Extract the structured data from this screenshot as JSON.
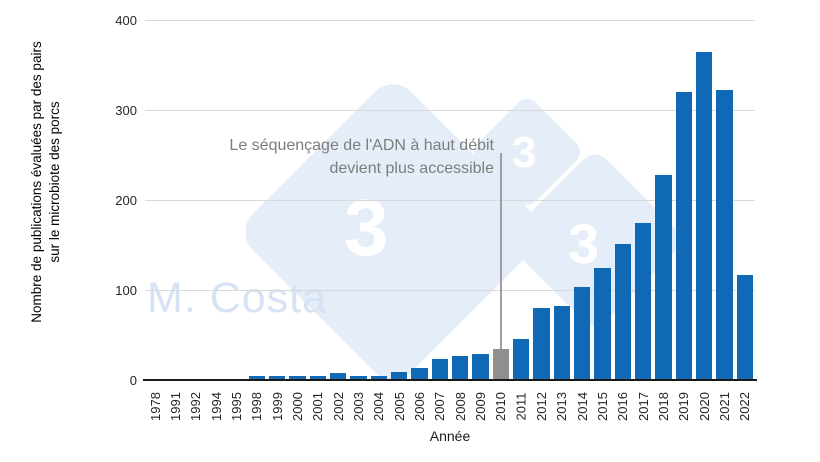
{
  "watermark": {
    "brand": "M. Costa",
    "glyphs": [
      "3",
      "3",
      "3"
    ]
  },
  "chart_data": {
    "type": "bar",
    "title": "",
    "xlabel": "Année",
    "ylabel_lines": [
      "Nombre de publications évaluées par des pairs",
      "sur le microbiote des porcs"
    ],
    "ylim": [
      0,
      400
    ],
    "yticks": [
      0,
      100,
      200,
      300,
      400
    ],
    "grid": true,
    "legend_position": "none",
    "categories": [
      "1978",
      "1991",
      "1992",
      "1994",
      "1995",
      "1998",
      "1999",
      "2000",
      "2001",
      "2002",
      "2003",
      "2004",
      "2005",
      "2006",
      "2007",
      "2008",
      "2009",
      "2010",
      "2011",
      "2012",
      "2013",
      "2014",
      "2015",
      "2016",
      "2017",
      "2018",
      "2019",
      "2020",
      "2021",
      "2022"
    ],
    "values": [
      1,
      1,
      1,
      1,
      1,
      5,
      5,
      5,
      5,
      8,
      4,
      4,
      9,
      13,
      23,
      27,
      29,
      35,
      46,
      80,
      82,
      103,
      124,
      151,
      174,
      228,
      320,
      365,
      322,
      117
    ],
    "highlighted_category": "2010",
    "annotation": {
      "text_lines": [
        "Le séquençage de l'ADN à haut débit",
        "devient plus accessible"
      ],
      "target_category": "2010"
    },
    "colors": {
      "bar": "#1069b4",
      "highlighted_bar": "#8f8f8f",
      "annotation_text": "#7d7d7d",
      "annotation_line": "#9e9e9e",
      "gridline": "#d9d9d9",
      "axis_line": "#1a1a1a",
      "tick_text": "#262626",
      "watermark_fill": "#e4edf8",
      "watermark_text": "#d6e3f4"
    }
  }
}
